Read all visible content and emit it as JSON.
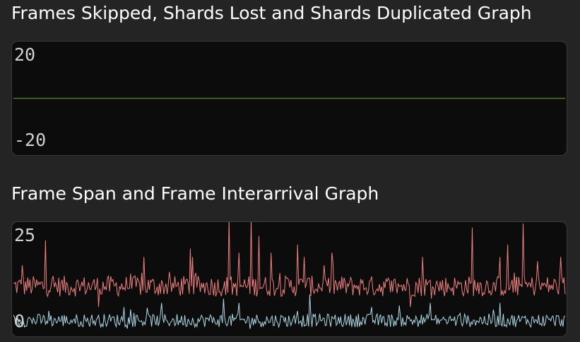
{
  "graphs": {
    "frames_graph": {
      "title": "Frames Skipped, Shards Lost and Shards Duplicated Graph",
      "y_max_label": "20",
      "y_min_label": "-20"
    },
    "span_graph": {
      "title": "Frame Span and Frame Interarrival Graph",
      "y_max_label": "25",
      "y_min_label": "0"
    }
  },
  "colors": {
    "background": "#242424",
    "graph_background": "#0c0c0c",
    "zero_line": "#4a7a2a",
    "frame_span": "#f08080",
    "frame_interarrival": "#add8e6"
  },
  "chart_data": [
    {
      "type": "line",
      "title": "Frames Skipped, Shards Lost and Shards Duplicated Graph",
      "ylim": [
        -20,
        20
      ],
      "series": [
        {
          "values": [
            0,
            0
          ]
        }
      ]
    },
    {
      "type": "line",
      "title": "Frame Span and Frame Interarrival Graph",
      "ylim": [
        0,
        25
      ],
      "points_per_series": 500,
      "series": [
        {
          "color": "#f08080",
          "base": 10,
          "noise": 2.5,
          "spikes": [
            {
              "i": 13,
              "v": 15
            },
            {
              "i": 46,
              "v": 21
            },
            {
              "i": 124,
              "v": 19
            },
            {
              "i": 123,
              "v": 5
            },
            {
              "i": 189,
              "v": 17
            },
            {
              "i": 257,
              "v": 19
            },
            {
              "i": 260,
              "v": 17
            },
            {
              "i": 312,
              "v": 26
            },
            {
              "i": 327,
              "v": 18
            },
            {
              "i": 344,
              "v": 26
            },
            {
              "i": 356,
              "v": 22
            },
            {
              "i": 374,
              "v": 18
            },
            {
              "i": 412,
              "v": 20
            },
            {
              "i": 421,
              "v": 17
            },
            {
              "i": 451,
              "v": 15
            },
            {
              "i": 462,
              "v": 18
            },
            {
              "i": 575,
              "v": 5
            },
            {
              "i": 593,
              "v": 17
            },
            {
              "i": 665,
              "v": 24
            },
            {
              "i": 706,
              "v": 17
            },
            {
              "i": 717,
              "v": 20
            },
            {
              "i": 739,
              "v": 25
            },
            {
              "i": 760,
              "v": 16
            },
            {
              "i": 793,
              "v": 17
            }
          ]
        },
        {
          "color": "#add8e6",
          "base": 1.8,
          "noise": 1.6,
          "spikes": [
            {
              "i": 160,
              "v": 5
            },
            {
              "i": 215,
              "v": 6
            },
            {
              "i": 305,
              "v": 7
            },
            {
              "i": 327,
              "v": 6
            },
            {
              "i": 429,
              "v": 8
            },
            {
              "i": 520,
              "v": 5
            },
            {
              "i": 604,
              "v": 6
            },
            {
              "i": 705,
              "v": 6
            }
          ]
        }
      ]
    }
  ]
}
